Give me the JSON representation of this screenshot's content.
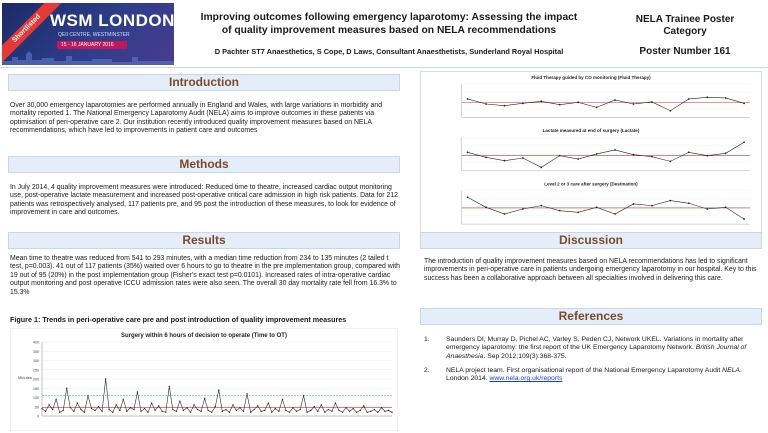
{
  "logo": {
    "ribbon": "Shortlisted",
    "name": "WSM LONDON",
    "venue": "QEII CENTRE, WESTMINSTER",
    "dates": "15 - 16 JANUARY 2016"
  },
  "header": {
    "title": "Improving outcomes following emergency laparotomy: Assessing the impact of quality improvement measures based on NELA recommendations",
    "authors": "D Pachter ST7 Anaesthetics, S Cope, D Laws, Consultant Anaesthetists, Sunderland Royal Hospital"
  },
  "category": {
    "line1": "NELA Trainee Poster",
    "line2": "Category",
    "poster_number": "Poster Number 161"
  },
  "sections": {
    "introduction": {
      "heading": "Introduction",
      "text": "Over 30,000 emergency laparotomies are performed annually in England and Wales, with large variations in morbidity and mortality reported 1. The National Emergency Laparotomy Audit (NELA) aims to improve outcomes in these patients via optimisation of peri-operative care 2. Our institution recently introduced quality improvement measures based on NELA recommendations, which have led to improvements in patient care and outcomes"
    },
    "methods": {
      "heading": "Methods",
      "text": "In July 2014, 4 quality improvement measures were introduced: Reduced time to theatre, increased cardiac output monitoring use, post-operative lactate measurement and increased post-operative critical care admission in high risk patients. Data for 212 patients was retrospectively analysed, 117 patients pre, and 95 post the introduction of these measures, to look for evidence of improvement in care and outcomes."
    },
    "results": {
      "heading": "Results",
      "text": "Mean time to theatre was reduced from 541 to 293 minutes, with a median time reduction from 234 to 135 minutes (2 tailed t test, p=0.003). 41 out of 117 patients (35%) waited over 6 hours to go to theatre in the pre implementation group, compared with 19 out of 95 (20%) in the post implementation group (Fisher's exact test p=0.0101). Increased rates of intra-operative cardiac output monitoring and post operative ICCU admission rates were also seen. The overall 30 day mortality rate fell from 16.3% to 15.3%",
      "figure_caption": "Figure 1: Trends in peri-operative care pre and post introduction of quality improvement measures"
    },
    "discussion": {
      "heading": "Discussion",
      "text": "The introduction of quality improvement measures based on NELA recommendations has led to significant improvements in peri-operative care in patients undergoing emergency laparotomy in our hospital. Key to this success has been a collaborative approach between all specialties involved in delivering this care."
    },
    "references": {
      "heading": "References",
      "items": [
        {
          "num": "1.",
          "pre": "Saunders DI, Murray D, Pichel AC, Varley S, Peden CJ, Network UKEL. Variations in mortality after emergency laparotomy: the first report of the UK Emergency Laparotomy Network. ",
          "journal": "British Journal of Anaesthesia",
          "post": ". Sep 2012;109(3):368-375."
        },
        {
          "num": "2.",
          "pre": "NELA project team. First organisational report of the National Emergency Laparotomy Audit ",
          "journal": "NELA",
          "post": ". London 2014. ",
          "link": "www.nela.org.uk/reports"
        }
      ]
    }
  },
  "chart_data": [
    {
      "type": "line",
      "title": "Surgery within 6 hours of decision to operate (Time to OT)",
      "ylabel": "Minutes",
      "ylim": [
        0,
        400
      ],
      "yticks": [
        0,
        50,
        100,
        150,
        200,
        250,
        300,
        350,
        400
      ],
      "series": [
        {
          "values": [
            40,
            25,
            60,
            35,
            90,
            20,
            30,
            150,
            45,
            25,
            70,
            35,
            20,
            110,
            40,
            30,
            50,
            25,
            200,
            35,
            20,
            60,
            30,
            90,
            25,
            45,
            35,
            130,
            25,
            40,
            20,
            70,
            30,
            55,
            25,
            20,
            160,
            35,
            25,
            80,
            30,
            45,
            20,
            60,
            35,
            25,
            95,
            30,
            20,
            50,
            140,
            25,
            35,
            20,
            60,
            30,
            45,
            25,
            120,
            20,
            35,
            55,
            25,
            30,
            70,
            20,
            40,
            25,
            90,
            30,
            20,
            45,
            25,
            35,
            110,
            20,
            30,
            50,
            25,
            60,
            20,
            35,
            25,
            70,
            30,
            20,
            45,
            25,
            40,
            20,
            30,
            55,
            20,
            25,
            35,
            20,
            45,
            25,
            30,
            20
          ]
        }
      ]
    },
    {
      "type": "line",
      "title": "Fluid Therapy guided by CO monitoring (Fluid Therapy)",
      "series": [
        {
          "values": [
            0.55,
            0.4,
            0.35,
            0.42,
            0.48,
            0.38,
            0.45,
            0.3,
            0.52,
            0.4,
            0.46,
            0.2,
            0.55,
            0.6,
            0.58,
            0.42
          ]
        }
      ]
    },
    {
      "type": "line",
      "title": "Lactate measured at end of surgery (Lactate)",
      "series": [
        {
          "values": [
            0.55,
            0.4,
            0.3,
            0.38,
            0.1,
            0.45,
            0.35,
            0.5,
            0.62,
            0.48,
            0.42,
            0.28,
            0.55,
            0.45,
            0.52,
            0.85
          ]
        }
      ]
    },
    {
      "type": "line",
      "title": "Level 2 or 3 care after surgery (Destination)",
      "series": [
        {
          "values": [
            0.8,
            0.5,
            0.3,
            0.45,
            0.55,
            0.4,
            0.35,
            0.5,
            0.3,
            0.6,
            0.55,
            0.7,
            0.62,
            0.45,
            0.5,
            0.15
          ]
        }
      ]
    }
  ],
  "colors": {
    "section_bg": "#e5eef8",
    "section_border": "#c6d7ea",
    "heading_text": "#7a4a2a",
    "ribbon": "#e53935",
    "logo_bg": "#1c2a66",
    "link": "#1a3fd0"
  }
}
